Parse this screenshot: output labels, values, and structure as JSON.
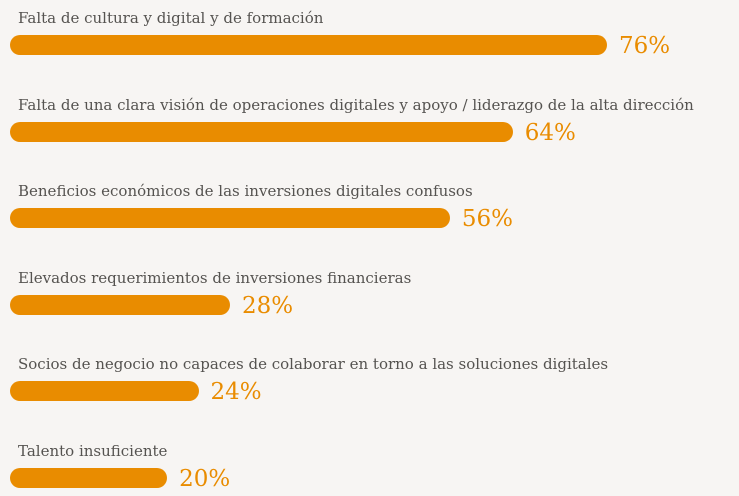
{
  "chart_data": {
    "type": "bar",
    "orientation": "horizontal",
    "categories": [
      "Falta de cultura y digital y de formación",
      "Falta de una clara visión de operaciones digitales y apoyo / liderazgo de la alta dirección",
      "Beneficios económicos de las inversiones digitales confusos",
      "Elevados requerimientos de inversiones financieras",
      "Socios de negocio no capaces de colaborar en torno a las soluciones digitales",
      "Talento insuficiente"
    ],
    "values": [
      76,
      64,
      56,
      28,
      24,
      20
    ],
    "value_labels": [
      "76%",
      "64%",
      "56%",
      "28%",
      "24%",
      "20%"
    ],
    "unit": "%",
    "bar_color": "#e98c00",
    "label_color": "#555350",
    "background": "#f7f5f3",
    "grid": false,
    "legend": "none"
  }
}
